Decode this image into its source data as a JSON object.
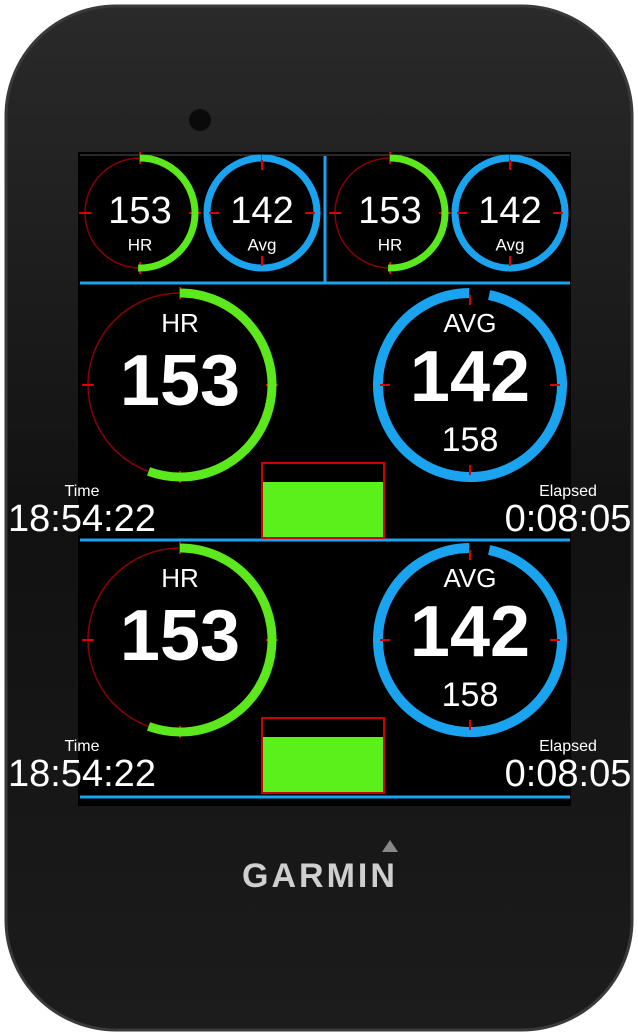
{
  "top_gauges": [
    {
      "value": "153",
      "label": "HR"
    },
    {
      "value": "142",
      "label": "Avg"
    },
    {
      "value": "153",
      "label": "HR"
    },
    {
      "value": "142",
      "label": "Avg"
    }
  ],
  "panels": [
    {
      "left": {
        "label": "HR",
        "value": "153"
      },
      "right": {
        "label": "AVG",
        "value": "142",
        "sub": "158"
      },
      "time_label": "Time",
      "time": "18:54:22",
      "elapsed_label": "Elapsed",
      "elapsed": "0:08:05"
    },
    {
      "left": {
        "label": "HR",
        "value": "153"
      },
      "right": {
        "label": "AVG",
        "value": "142",
        "sub": "158"
      },
      "time_label": "Time",
      "time": "18:54:22",
      "elapsed_label": "Elapsed",
      "elapsed": "0:08:05"
    }
  ],
  "brand": "GARMIN"
}
